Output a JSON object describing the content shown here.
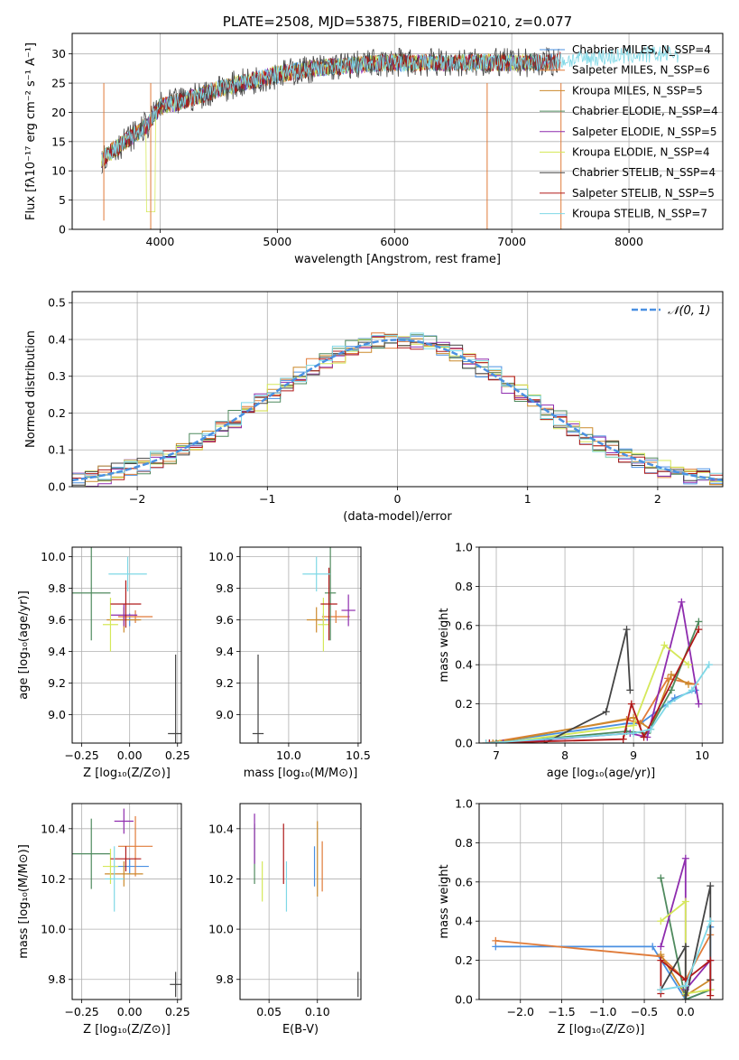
{
  "colors": {
    "c1": "#4a90e2",
    "c2": "#e07b39",
    "c3": "#cc8a2c",
    "c4": "#4f8a5e",
    "c5": "#8e2cae",
    "c6": "#d5e85a",
    "c7": "#444444",
    "c8": "#b01a1a",
    "c9": "#7fd8e6"
  },
  "chart_data": [
    {
      "id": "spectrum",
      "type": "line",
      "title": "PLATE=2508, MJD=53875, FIBERID=0210, z=0.077",
      "xlabel": "wavelength [Angstrom, rest frame]",
      "ylabel": "Flux [fλ10⁻¹⁷ erg cm⁻² s⁻¹ A⁻¹]",
      "xlim": [
        3250,
        8800
      ],
      "ylim": [
        0,
        33.5
      ],
      "xticks": [
        "4000",
        "5000",
        "6000",
        "7000",
        "8000"
      ],
      "yticks": [
        "0",
        "5",
        "10",
        "15",
        "20",
        "25",
        "30"
      ],
      "legend_position": "top-right",
      "legend": [
        {
          "name": "Chabrier MILES, N_SSP=4",
          "color_key": "c1"
        },
        {
          "name": "Salpeter MILES, N_SSP=6",
          "color_key": "c2"
        },
        {
          "name": "Kroupa MILES, N_SSP=5",
          "color_key": "c3"
        },
        {
          "name": "Chabrier ELODIE, N_SSP=4",
          "color_key": "c4"
        },
        {
          "name": "Salpeter ELODIE, N_SSP=5",
          "color_key": "c5"
        },
        {
          "name": "Kroupa ELODIE, N_SSP=4",
          "color_key": "c6"
        },
        {
          "name": "Chabrier STELIB, N_SSP=4",
          "color_key": "c7"
        },
        {
          "name": "Salpeter STELIB, N_SSP=5",
          "color_key": "c8"
        },
        {
          "name": "Kroupa STELIB, N_SSP=7",
          "color_key": "c9"
        }
      ],
      "continuum": {
        "x": [
          3500,
          3700,
          3900,
          4000,
          4200,
          4500,
          4800,
          5000,
          5300,
          5600,
          5900,
          6200,
          6500,
          6800,
          7000,
          7300,
          7500,
          7800,
          8100,
          8400
        ],
        "y": [
          12,
          15,
          18,
          21,
          22,
          24,
          25.5,
          26.5,
          27.5,
          28,
          28.5,
          28.5,
          28.5,
          28.5,
          28.5,
          28.5,
          29,
          29.5,
          29.8,
          30
        ]
      },
      "dips": [
        {
          "x": 3520,
          "y": 1.5
        },
        {
          "x": 3920,
          "y": 0
        },
        {
          "x": 6790,
          "y": 0
        },
        {
          "x": 7420,
          "y": 0
        }
      ]
    },
    {
      "id": "residuals",
      "type": "line",
      "title": "",
      "xlabel": "(data-model)/error",
      "ylabel": "Normed distribution",
      "xlim": [
        -2.5,
        2.5
      ],
      "ylim": [
        0,
        0.53
      ],
      "xticks": [
        "−2",
        "−1",
        "0",
        "1",
        "2"
      ],
      "yticks": [
        "0.0",
        "0.1",
        "0.2",
        "0.3",
        "0.4",
        "0.5"
      ],
      "legend_position": "top-right",
      "legend": [
        {
          "name": "𝒩(0, 1)",
          "color_key": "c1"
        }
      ],
      "gaussian": {
        "mean": 0,
        "sigma": 1
      }
    },
    {
      "id": "age-vs-Z",
      "type": "scatter",
      "title": "",
      "xlabel": "Z [log₁₀(Z/Z⊙)]",
      "ylabel": "age  [log₁₀(age/yr)]",
      "xlim": [
        -0.3,
        0.27
      ],
      "ylim": [
        8.82,
        10.06
      ],
      "xticks": [
        "−0.25",
        "0.00",
        "0.25"
      ],
      "yticks": [
        "9.0",
        "9.2",
        "9.4",
        "9.6",
        "9.8",
        "10.0"
      ],
      "points": [
        {
          "x": 0.0,
          "y": 9.6,
          "xerr": 0.05,
          "yerr": 0.04,
          "color_key": "c1"
        },
        {
          "x": 0.03,
          "y": 9.62,
          "xerr": 0.09,
          "yerr": 0.04,
          "color_key": "c2"
        },
        {
          "x": -0.03,
          "y": 9.6,
          "xerr": 0.09,
          "yerr": 0.08,
          "color_key": "c3"
        },
        {
          "x": -0.2,
          "y": 9.77,
          "xerr": 0.1,
          "yerr": 0.3,
          "color_key": "c4"
        },
        {
          "x": -0.03,
          "y": 9.63,
          "xerr": 0.07,
          "yerr": 0.07,
          "color_key": "c5"
        },
        {
          "x": -0.1,
          "y": 9.57,
          "xerr": 0.04,
          "yerr": 0.17,
          "color_key": "c6"
        },
        {
          "x": 0.24,
          "y": 8.88,
          "xerr": 0.04,
          "yerr": 0.5,
          "color_key": "c7"
        },
        {
          "x": -0.02,
          "y": 9.7,
          "xerr": 0.08,
          "yerr": 0.15,
          "color_key": "c8"
        },
        {
          "x": -0.01,
          "y": 9.89,
          "xerr": 0.1,
          "yerr": 0.11,
          "color_key": "c9"
        }
      ]
    },
    {
      "id": "age-vs-mass",
      "type": "scatter",
      "title": "",
      "xlabel": "mass [log₁₀(M/M⊙)]",
      "ylabel": "",
      "xlim": [
        9.65,
        10.52
      ],
      "ylim": [
        8.82,
        10.06
      ],
      "xticks": [
        "10.0",
        "10.5"
      ],
      "yticks": [
        "9.0",
        "9.2",
        "9.4",
        "9.6",
        "9.8",
        "10.0"
      ],
      "points": [
        {
          "x": 10.25,
          "y": 9.6,
          "xerr": 0.05,
          "yerr": 0.04,
          "color_key": "c1"
        },
        {
          "x": 10.34,
          "y": 9.62,
          "xerr": 0.1,
          "yerr": 0.04,
          "color_key": "c2"
        },
        {
          "x": 10.2,
          "y": 9.6,
          "xerr": 0.07,
          "yerr": 0.08,
          "color_key": "c3"
        },
        {
          "x": 10.3,
          "y": 9.77,
          "xerr": 0.04,
          "yerr": 0.3,
          "color_key": "c4"
        },
        {
          "x": 10.43,
          "y": 9.66,
          "xerr": 0.05,
          "yerr": 0.1,
          "color_key": "c5"
        },
        {
          "x": 10.25,
          "y": 9.57,
          "xerr": 0.04,
          "yerr": 0.17,
          "color_key": "c6"
        },
        {
          "x": 9.78,
          "y": 8.88,
          "xerr": 0.04,
          "yerr": 0.5,
          "color_key": "c7"
        },
        {
          "x": 10.29,
          "y": 9.7,
          "xerr": 0.06,
          "yerr": 0.23,
          "color_key": "c8"
        },
        {
          "x": 10.2,
          "y": 9.89,
          "xerr": 0.1,
          "yerr": 0.11,
          "color_key": "c9"
        }
      ]
    },
    {
      "id": "mass-weight-vs-age",
      "type": "line",
      "title": "",
      "xlabel": "age  [log₁₀(age/yr)]",
      "ylabel": "mass weight",
      "xlim": [
        6.75,
        10.3
      ],
      "ylim": [
        0,
        1.0
      ],
      "xticks": [
        "7",
        "8",
        "9",
        "10"
      ],
      "yticks": [
        "0.0",
        "0.2",
        "0.4",
        "0.6",
        "0.8",
        "1.0"
      ],
      "series": [
        {
          "color_key": "c1",
          "x": [
            6.9,
            8.9,
            9.1,
            9.6,
            9.9
          ],
          "y": [
            0.0,
            0.1,
            0.1,
            0.23,
            0.27
          ]
        },
        {
          "color_key": "c2",
          "x": [
            6.85,
            8.9,
            9.1,
            9.5,
            9.9
          ],
          "y": [
            0.0,
            0.12,
            0.1,
            0.33,
            0.3
          ]
        },
        {
          "color_key": "c3",
          "x": [
            6.95,
            9.0,
            9.25,
            9.55,
            9.8
          ],
          "y": [
            0.0,
            0.13,
            0.07,
            0.35,
            0.3
          ]
        },
        {
          "color_key": "c4",
          "x": [
            7.0,
            8.9,
            9.2,
            9.55,
            9.95
          ],
          "y": [
            0.0,
            0.06,
            0.05,
            0.27,
            0.62
          ]
        },
        {
          "color_key": "c5",
          "x": [
            7.1,
            8.95,
            9.2,
            9.7,
            9.95
          ],
          "y": [
            0.0,
            0.05,
            0.03,
            0.72,
            0.2
          ]
        },
        {
          "color_key": "c6",
          "x": [
            7.05,
            9.0,
            9.45,
            9.8
          ],
          "y": [
            0.0,
            0.09,
            0.5,
            0.4
          ]
        },
        {
          "color_key": "c7",
          "x": [
            7.7,
            8.6,
            8.9,
            8.95
          ],
          "y": [
            0.0,
            0.16,
            0.58,
            0.27
          ]
        },
        {
          "color_key": "c8",
          "x": [
            6.9,
            8.85,
            8.97,
            9.15,
            9.95
          ],
          "y": [
            0.0,
            0.02,
            0.2,
            0.03,
            0.58
          ]
        },
        {
          "color_key": "c9",
          "x": [
            6.85,
            9.0,
            9.25,
            9.5,
            9.85,
            10.1
          ],
          "y": [
            0.0,
            0.05,
            0.07,
            0.2,
            0.27,
            0.4
          ]
        }
      ]
    },
    {
      "id": "mass-vs-Z",
      "type": "scatter",
      "title": "",
      "xlabel": "Z [log₁₀(Z/Z⊙)]",
      "ylabel": "mass [log₁₀(M/M⊙)]",
      "xlim": [
        -0.3,
        0.27
      ],
      "ylim": [
        9.72,
        10.5
      ],
      "xticks": [
        "−0.25",
        "0.00",
        "0.25"
      ],
      "yticks": [
        "9.8",
        "10.0",
        "10.2",
        "10.4"
      ],
      "points": [
        {
          "x": 0.0,
          "y": 10.25,
          "xerr": 0.1,
          "yerr": 0.03,
          "color_key": "c1"
        },
        {
          "x": 0.03,
          "y": 10.33,
          "xerr": 0.09,
          "yerr": 0.12,
          "color_key": "c2"
        },
        {
          "x": -0.03,
          "y": 10.22,
          "xerr": 0.1,
          "yerr": 0.05,
          "color_key": "c3"
        },
        {
          "x": -0.2,
          "y": 10.3,
          "xerr": 0.1,
          "yerr": 0.14,
          "color_key": "c4"
        },
        {
          "x": -0.03,
          "y": 10.43,
          "xerr": 0.05,
          "yerr": 0.05,
          "color_key": "c5"
        },
        {
          "x": -0.1,
          "y": 10.25,
          "xerr": 0.04,
          "yerr": 0.07,
          "color_key": "c6"
        },
        {
          "x": 0.24,
          "y": 9.78,
          "xerr": 0.03,
          "yerr": 0.05,
          "color_key": "c7"
        },
        {
          "x": -0.02,
          "y": 10.28,
          "xerr": 0.08,
          "yerr": 0.05,
          "color_key": "c8"
        },
        {
          "x": -0.08,
          "y": 10.2,
          "xerr": 0.05,
          "yerr": 0.13,
          "color_key": "c9"
        }
      ]
    },
    {
      "id": "mass-vs-ebv",
      "type": "scatter",
      "title": "",
      "xlabel": "E(B-V)",
      "ylabel": "",
      "xlim": [
        0.02,
        0.145
      ],
      "ylim": [
        9.72,
        10.5
      ],
      "xticks": [
        "0.05",
        "0.10"
      ],
      "yticks": [
        "9.8",
        "10.0",
        "10.2",
        "10.4"
      ],
      "points": [
        {
          "x": 0.097,
          "y": 10.25,
          "xerr": 0.0,
          "yerr": 0.08,
          "color_key": "c1"
        },
        {
          "x": 0.105,
          "y": 10.25,
          "xerr": 0.0,
          "yerr": 0.1,
          "color_key": "c2"
        },
        {
          "x": 0.1,
          "y": 10.28,
          "xerr": 0.0,
          "yerr": 0.15,
          "color_key": "c3"
        },
        {
          "x": 0.035,
          "y": 10.3,
          "xerr": 0.0,
          "yerr": 0.12,
          "color_key": "c4"
        },
        {
          "x": 0.035,
          "y": 10.36,
          "xerr": 0.0,
          "yerr": 0.1,
          "color_key": "c5"
        },
        {
          "x": 0.043,
          "y": 10.19,
          "xerr": 0.0,
          "yerr": 0.08,
          "color_key": "c6"
        },
        {
          "x": 0.142,
          "y": 9.78,
          "xerr": 0.0,
          "yerr": 0.05,
          "color_key": "c7"
        },
        {
          "x": 0.065,
          "y": 10.3,
          "xerr": 0.0,
          "yerr": 0.12,
          "color_key": "c8"
        },
        {
          "x": 0.068,
          "y": 10.17,
          "xerr": 0.0,
          "yerr": 0.1,
          "color_key": "c9"
        }
      ]
    },
    {
      "id": "mass-weight-vs-Z",
      "type": "line",
      "title": "",
      "xlabel": "Z [log₁₀(Z/Z⊙)]",
      "ylabel": "mass weight",
      "xlim": [
        -2.5,
        0.45
      ],
      "ylim": [
        0,
        1.0
      ],
      "xticks": [
        "−2.0",
        "−1.5",
        "−1.0",
        "−0.5",
        "0.0"
      ],
      "yticks": [
        "0.0",
        "0.2",
        "0.4",
        "0.6",
        "0.8",
        "1.0"
      ],
      "series": [
        {
          "color_key": "c1",
          "x": [
            -2.3,
            -0.4,
            0.0,
            0.3,
            0.3
          ],
          "y": [
            0.27,
            0.27,
            0.0,
            0.05,
            0.37
          ]
        },
        {
          "color_key": "c2",
          "x": [
            -2.3,
            -0.3,
            0.0,
            0.3
          ],
          "y": [
            0.3,
            0.22,
            0.1,
            0.33
          ]
        },
        {
          "color_key": "c3",
          "x": [
            -0.3,
            0.0,
            0.3
          ],
          "y": [
            0.23,
            0.02,
            0.1
          ]
        },
        {
          "color_key": "c4",
          "x": [
            -0.3,
            0.0,
            0.3
          ],
          "y": [
            0.62,
            0.0,
            0.05
          ]
        },
        {
          "color_key": "c5",
          "x": [
            -0.3,
            0.0,
            0.0,
            0.3
          ],
          "y": [
            0.27,
            0.72,
            0.05,
            0.2
          ]
        },
        {
          "color_key": "c6",
          "x": [
            -0.3,
            0.0,
            0.0,
            0.3
          ],
          "y": [
            0.4,
            0.5,
            0.03,
            0.05
          ]
        },
        {
          "color_key": "c7",
          "x": [
            -0.3,
            0.0,
            0.0,
            0.3,
            0.3
          ],
          "y": [
            0.05,
            0.27,
            0.0,
            0.58,
            0.1
          ]
        },
        {
          "color_key": "c8",
          "x": [
            -0.3,
            -0.3,
            0.0,
            0.3,
            0.3
          ],
          "y": [
            0.03,
            0.2,
            0.1,
            0.2,
            0.02
          ]
        },
        {
          "color_key": "c9",
          "x": [
            -0.3,
            0.0,
            0.3
          ],
          "y": [
            0.05,
            0.07,
            0.4
          ]
        }
      ]
    }
  ]
}
